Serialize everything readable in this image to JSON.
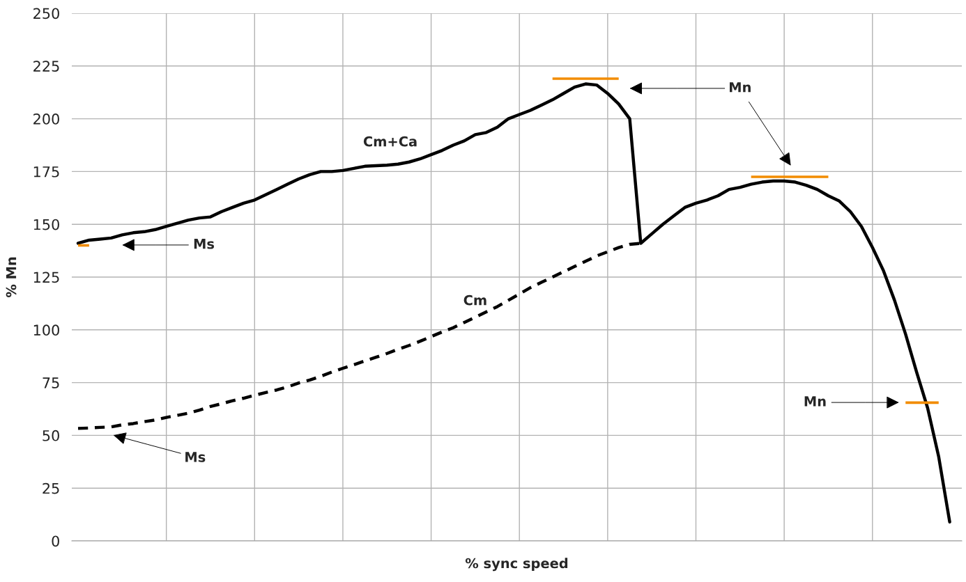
{
  "chart_data": {
    "type": "line",
    "xlabel": "% sync speed",
    "ylabel": "% Mn",
    "categories": [
      null,
      null,
      null,
      null,
      null,
      null,
      null,
      null,
      null,
      null,
      null,
      null,
      null,
      null,
      null,
      null,
      null,
      null,
      null,
      null,
      null,
      null,
      null,
      null,
      null,
      null,
      null,
      null,
      null,
      null,
      null,
      null,
      null,
      null,
      null,
      null,
      null,
      null,
      null,
      null,
      null,
      null,
      null,
      null,
      null,
      null,
      null,
      null,
      null,
      null,
      null,
      null,
      null,
      null,
      null,
      null,
      null,
      null,
      null,
      null,
      null,
      null,
      null,
      null,
      null,
      null,
      null,
      null,
      null,
      null,
      null,
      null,
      null,
      null,
      null,
      null,
      null,
      null,
      null,
      null
    ],
    "series": [
      {
        "name": "Cm+Ca",
        "color": "#000000",
        "line_style": "solid",
        "values": [
          141,
          142.5,
          143,
          143.5,
          145,
          146,
          146.5,
          147.5,
          149,
          150.5,
          152,
          153,
          153.5,
          156,
          158,
          160,
          161.5,
          164,
          166.5,
          169,
          171.5,
          173.5,
          175,
          175,
          175.5,
          176.5,
          177.5,
          177.8,
          178,
          178.5,
          179.5,
          181,
          183,
          185,
          187.5,
          189.5,
          192.5,
          193.5,
          196,
          200,
          202,
          204,
          206.5,
          209,
          212,
          215,
          216.5,
          216,
          212,
          207,
          200,
          141,
          145.5,
          150,
          154,
          158,
          160,
          161.5,
          163.5,
          166.5,
          167.5,
          169,
          170,
          170.5,
          170.5,
          170,
          168.5,
          166.5,
          163.5,
          161,
          156,
          149,
          139,
          128,
          114,
          98,
          80,
          63,
          40,
          9
        ]
      },
      {
        "name": "Cm",
        "color": "#000000",
        "line_style": "dashed",
        "values": [
          53.3,
          53.5,
          53.8,
          54,
          55,
          55.6,
          56.5,
          57.3,
          58.5,
          59.5,
          60.5,
          62,
          63.7,
          65,
          66.4,
          67.6,
          69,
          70.3,
          71.5,
          73,
          74.8,
          76.2,
          78,
          80,
          81.8,
          83.5,
          85.3,
          87,
          88.8,
          90.8,
          92.6,
          94.6,
          96.8,
          99,
          101,
          103.5,
          106,
          108.5,
          111,
          114,
          117,
          120,
          122.5,
          125,
          127.5,
          130,
          132.5,
          135,
          137,
          139,
          140.5,
          141,
          null,
          null,
          null,
          null,
          null,
          null,
          null,
          null,
          null,
          null,
          null,
          null,
          null,
          null,
          null,
          null,
          null,
          null,
          null,
          null,
          null,
          null,
          null,
          null,
          null,
          null,
          null,
          null
        ]
      },
      {
        "color": "#f28c00",
        "line_style": "solid",
        "values": [
          140,
          140,
          null,
          null,
          null,
          null,
          null,
          null,
          null,
          null,
          null,
          null,
          null,
          null,
          null,
          null,
          null,
          null,
          null,
          null,
          null,
          null,
          null,
          null,
          null,
          null,
          null,
          null,
          null,
          null,
          null,
          null,
          null,
          null,
          null,
          null,
          null,
          null,
          null,
          null,
          null,
          null,
          null,
          null,
          null,
          null,
          null,
          null,
          null,
          null,
          null,
          null,
          null,
          null,
          null,
          null,
          null,
          null,
          null,
          null,
          null,
          null,
          null,
          null,
          null,
          null,
          null,
          null,
          null,
          null,
          null,
          null,
          null,
          null,
          null,
          null,
          null,
          null,
          null,
          null
        ]
      },
      {
        "color": "#f28c00",
        "line_style": "solid",
        "values": [
          null,
          null,
          null,
          null,
          null,
          null,
          null,
          null,
          null,
          null,
          null,
          null,
          null,
          null,
          null,
          null,
          null,
          null,
          null,
          null,
          null,
          null,
          null,
          null,
          null,
          null,
          null,
          null,
          null,
          null,
          null,
          null,
          null,
          null,
          null,
          null,
          null,
          null,
          null,
          null,
          null,
          null,
          null,
          219,
          219,
          219,
          219,
          219,
          219,
          219,
          null,
          null,
          null,
          null,
          null,
          null,
          null,
          null,
          null,
          null,
          null,
          null,
          null,
          null,
          null,
          null,
          null,
          null,
          null,
          null,
          null,
          null,
          null,
          null,
          null,
          null,
          null,
          null,
          null,
          null
        ]
      },
      {
        "color": "#f28c00",
        "line_style": "solid",
        "values": [
          null,
          null,
          null,
          null,
          null,
          null,
          null,
          null,
          null,
          null,
          null,
          null,
          null,
          null,
          null,
          null,
          null,
          null,
          null,
          null,
          null,
          null,
          null,
          null,
          null,
          null,
          null,
          null,
          null,
          null,
          null,
          null,
          null,
          null,
          null,
          null,
          null,
          null,
          null,
          null,
          null,
          null,
          null,
          null,
          null,
          null,
          null,
          null,
          null,
          null,
          null,
          null,
          null,
          null,
          null,
          null,
          null,
          null,
          null,
          null,
          null,
          172.5,
          172.5,
          172.5,
          172.5,
          172.5,
          172.5,
          172.5,
          172.5,
          null,
          null,
          null,
          null,
          null,
          null,
          null,
          null,
          null,
          null,
          null
        ]
      },
      {
        "color": "#f28c00",
        "line_style": "solid",
        "values": [
          null,
          null,
          null,
          null,
          null,
          null,
          null,
          null,
          null,
          null,
          null,
          null,
          null,
          null,
          null,
          null,
          null,
          null,
          null,
          null,
          null,
          null,
          null,
          null,
          null,
          null,
          null,
          null,
          null,
          null,
          null,
          null,
          null,
          null,
          null,
          null,
          null,
          null,
          null,
          null,
          null,
          null,
          null,
          null,
          null,
          null,
          null,
          null,
          null,
          null,
          null,
          null,
          null,
          null,
          null,
          null,
          null,
          null,
          null,
          null,
          null,
          null,
          null,
          null,
          null,
          null,
          null,
          null,
          null,
          null,
          null,
          null,
          null,
          null,
          null,
          65.5,
          65.5,
          65.5,
          65.5,
          null
        ]
      }
    ],
    "ylim": [
      0,
      250
    ],
    "yticks": [
      0,
      25,
      50,
      75,
      100,
      125,
      150,
      175,
      200,
      225,
      250
    ],
    "grid": true,
    "legend": false,
    "annotations": [
      "Ms",
      "Ms",
      "Mn",
      "Mn"
    ]
  }
}
